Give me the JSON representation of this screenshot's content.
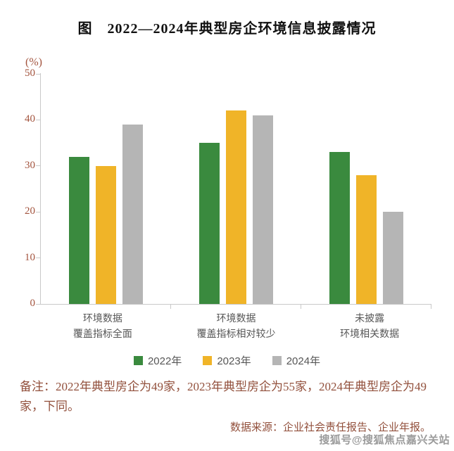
{
  "title": "图　2022—2024年典型房企环境信息披露情况",
  "chart_data": {
    "type": "bar",
    "title": "2022—2024年典型房企环境信息披露情况",
    "unit_label": "(%)",
    "categories": [
      [
        "环境数据",
        "覆盖指标全面"
      ],
      [
        "环境数据",
        "覆盖指标相对较少"
      ],
      [
        "未披露",
        "环境相关数据"
      ]
    ],
    "series": [
      {
        "name": "2022年",
        "color": "#3a8a3e",
        "values": [
          32,
          35,
          33
        ]
      },
      {
        "name": "2023年",
        "color": "#f0b428",
        "values": [
          30,
          42,
          28
        ]
      },
      {
        "name": "2024年",
        "color": "#b5b5b5",
        "values": [
          39,
          41,
          20
        ]
      }
    ],
    "ylim": [
      0,
      50
    ],
    "yticks": [
      0,
      10,
      20,
      30,
      40,
      50
    ],
    "grid": false,
    "legend_position": "bottom",
    "axis_color": "#c9c9c9",
    "tick_label_color": "#a3543e"
  },
  "notes": {
    "remark": "备注：2022年典型房企为49家，2023年典型房企为55家，2024年典型房企为49家，下同。",
    "source": "数据来源：企业社会责任报告、企业年报。"
  },
  "watermark": "搜狐号@搜狐焦点嘉兴关站"
}
